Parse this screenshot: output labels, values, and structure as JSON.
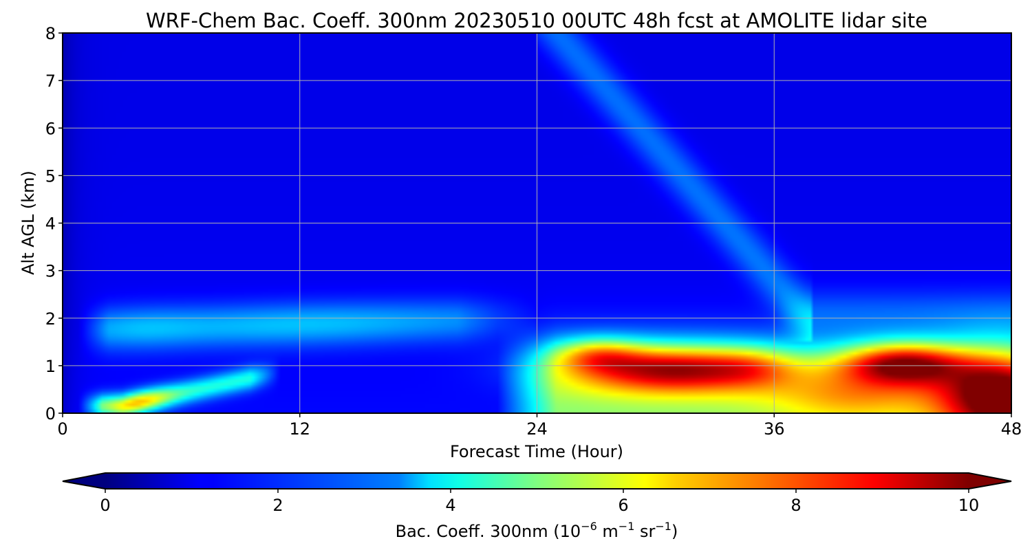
{
  "chart_data": {
    "type": "heatmap",
    "title": "WRF-Chem Bac. Coeff. 300nm  20230510 00UTC 48h fcst at AMOLITE lidar site",
    "xlabel": "Forecast Time (Hour)",
    "ylabel": "Alt AGL (km)",
    "xlim": [
      0,
      48
    ],
    "ylim": [
      0,
      8
    ],
    "x_ticks": [
      "0",
      "12",
      "24",
      "36",
      "48"
    ],
    "y_ticks": [
      "0",
      "1",
      "2",
      "3",
      "4",
      "5",
      "6",
      "7",
      "8"
    ],
    "grid": true,
    "colormap": "jet",
    "colorbar": {
      "orientation": "horizontal",
      "placement": "bottom",
      "range": [
        0,
        10
      ],
      "extend": "both",
      "ticks": [
        "0",
        "2",
        "4",
        "6",
        "8",
        "10"
      ],
      "label_main": "Bac. Coeff. 300nm  (10",
      "label_exp1": "−6",
      "label_mid": " m",
      "label_exp2": "−1",
      "label_mid2": " sr",
      "label_exp3": "−1",
      "label_end": ")"
    },
    "field_features": [
      {
        "name": "boundary layer aerosol max",
        "t": 31,
        "z": 0.95,
        "value": 10.5
      },
      {
        "name": "boundary layer aerosol max",
        "t": 42.5,
        "z": 1.05,
        "value": 10.2
      },
      {
        "name": "near-surface max",
        "t": 47.5,
        "z": 0.3,
        "value": 9.5
      },
      {
        "name": "near-surface plume",
        "t": 4,
        "z": 0.2,
        "value": 6.3
      },
      {
        "name": "elevated aerosol layer",
        "t": 10,
        "z": 2.0,
        "value": 3.8
      },
      {
        "name": "descending plume",
        "t": 30,
        "z": 5.5,
        "value": 2.2
      }
    ]
  }
}
